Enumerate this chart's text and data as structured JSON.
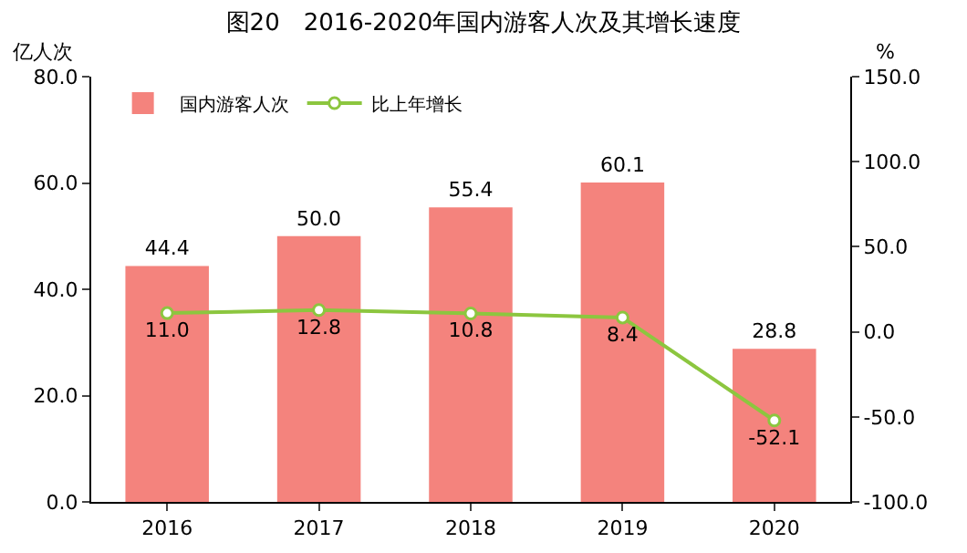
{
  "chart_data": {
    "type": "bar",
    "title": "图20　2016-2020年国内游客人次及其增长速度",
    "ylabel": "亿人次",
    "y2label": "%",
    "categories": [
      "2016",
      "2017",
      "2018",
      "2019",
      "2020"
    ],
    "series": [
      {
        "name": "国内游客人次",
        "color": "#f4837d",
        "values": [
          44.4,
          50.0,
          55.4,
          60.1,
          28.8
        ],
        "value_labels": [
          "44.4",
          "50.0",
          "55.4",
          "60.1",
          "28.8"
        ]
      },
      {
        "name": "比上年增长",
        "type": "line",
        "axis": "y2",
        "color": "#8cc63f",
        "marker": "circle",
        "values": [
          11.0,
          12.8,
          10.8,
          8.4,
          -52.1
        ],
        "value_labels": [
          "11.0",
          "12.8",
          "10.8",
          "8.4",
          "-52.1"
        ]
      }
    ],
    "ylim": [
      0,
      80
    ],
    "yticks": [
      {
        "value": 0,
        "label": "0.0"
      },
      {
        "value": 20,
        "label": "20.0"
      },
      {
        "value": 40,
        "label": "40.0"
      },
      {
        "value": 60,
        "label": "60.0"
      },
      {
        "value": 80,
        "label": "80.0"
      }
    ],
    "y2lim": [
      -100,
      150
    ],
    "y2ticks": [
      {
        "value": -100,
        "label": "-100.0"
      },
      {
        "value": -50,
        "label": "-50.0"
      },
      {
        "value": 0,
        "label": "0.0"
      },
      {
        "value": 50,
        "label": "50.0"
      },
      {
        "value": 100,
        "label": "100.0"
      },
      {
        "value": 150,
        "label": "150.0"
      }
    ],
    "grid": false,
    "legend": "top left"
  }
}
